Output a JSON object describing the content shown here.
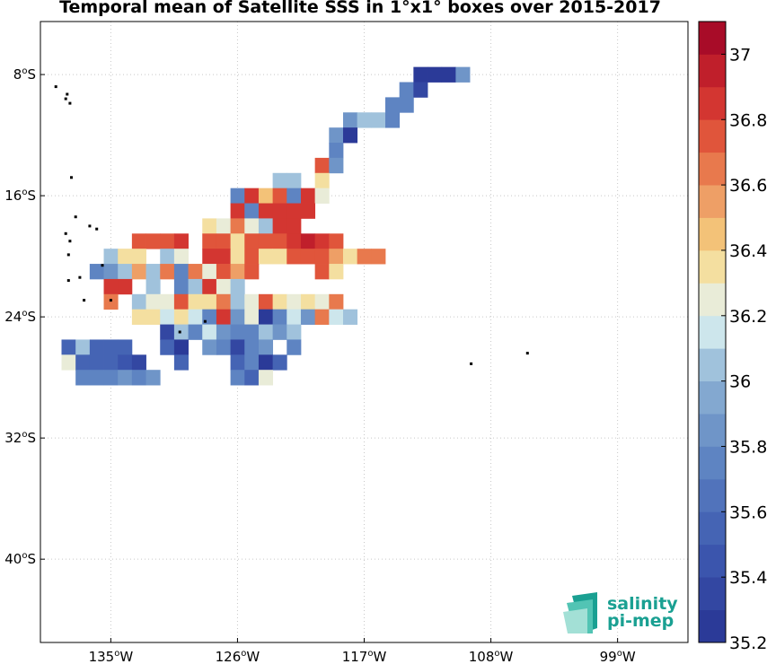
{
  "chart_data": {
    "type": "heatmap",
    "title": "Temporal mean of Satellite SSS in 1°x1° boxes over 2015-2017",
    "x_ticks": [
      {
        "value": -135,
        "label": "135°W"
      },
      {
        "value": -126,
        "label": "126°W"
      },
      {
        "value": -117,
        "label": "117°W"
      },
      {
        "value": -108,
        "label": "108°W"
      },
      {
        "value": -99,
        "label": "99°W"
      }
    ],
    "y_ticks": [
      {
        "value": -8,
        "label": "8°S"
      },
      {
        "value": -16,
        "label": "16°S"
      },
      {
        "value": -24,
        "label": "24°S"
      },
      {
        "value": -32,
        "label": "32°S"
      },
      {
        "value": -40,
        "label": "40°S"
      }
    ],
    "xlim": [
      -140,
      -94
    ],
    "ylim": [
      -45.5,
      -4.5
    ],
    "grid": true,
    "colorbar": {
      "range": [
        35.2,
        37.1
      ],
      "ticks": [
        35.2,
        35.4,
        35.6,
        35.8,
        36,
        36.2,
        36.4,
        36.6,
        36.8,
        37
      ],
      "tick_labels": [
        "35.2",
        "35.4",
        "35.6",
        "35.8",
        "36",
        "36.2",
        "36.4",
        "36.6",
        "36.8",
        "37"
      ],
      "colors": [
        "#2b3a98",
        "#3347a2",
        "#3b55ad",
        "#4564b4",
        "#5173bb",
        "#5e84c2",
        "#6f95c8",
        "#83a8d0",
        "#a0c2dc",
        "#cde6ec",
        "#e9ecd8",
        "#f4dfa0",
        "#f3c278",
        "#ee9f66",
        "#e8794d",
        "#e0553b",
        "#d33631",
        "#c01f2b",
        "#a80c28"
      ]
    },
    "units": "SSS",
    "cells": [
      [
        -113,
        -8,
        35.3
      ],
      [
        -112,
        -8,
        35.25
      ],
      [
        -111,
        -8,
        35.3
      ],
      [
        -110,
        -8,
        35.9
      ],
      [
        -114,
        -9,
        35.7
      ],
      [
        -113,
        -9,
        35.4
      ],
      [
        -115,
        -10,
        35.75
      ],
      [
        -114,
        -10,
        35.7
      ],
      [
        -118,
        -11,
        35.9
      ],
      [
        -117,
        -11,
        36.05
      ],
      [
        -116,
        -11,
        36.1
      ],
      [
        -115,
        -11,
        35.75
      ],
      [
        -119,
        -12,
        35.9
      ],
      [
        -118,
        -12,
        35.3
      ],
      [
        -119,
        -13,
        35.75
      ],
      [
        -120,
        -14,
        36.75
      ],
      [
        -119,
        -14,
        35.9
      ],
      [
        -123,
        -15,
        36.1
      ],
      [
        -122,
        -15,
        36.1
      ],
      [
        -120,
        -15,
        36.4
      ],
      [
        -126,
        -16,
        35.7
      ],
      [
        -125,
        -16,
        36.85
      ],
      [
        -124,
        -16,
        36.45
      ],
      [
        -123,
        -16,
        36.75
      ],
      [
        -122,
        -16,
        35.7
      ],
      [
        -121,
        -16,
        36.9
      ],
      [
        -120,
        -16,
        36.3
      ],
      [
        -126,
        -17,
        36.85
      ],
      [
        -125,
        -17,
        35.7
      ],
      [
        -124,
        -17,
        36.9
      ],
      [
        -123,
        -17,
        36.85
      ],
      [
        -122,
        -17,
        36.85
      ],
      [
        -121,
        -17,
        36.85
      ],
      [
        -128,
        -18,
        36.35
      ],
      [
        -127,
        -18,
        36.2
      ],
      [
        -126,
        -18,
        36.65
      ],
      [
        -125,
        -18,
        36.3
      ],
      [
        -124,
        -18,
        36.1
      ],
      [
        -123,
        -18,
        36.85
      ],
      [
        -122,
        -18,
        36.85
      ],
      [
        -133,
        -19,
        36.8
      ],
      [
        -132,
        -19,
        36.7
      ],
      [
        -131,
        -19,
        36.8
      ],
      [
        -130,
        -19,
        36.9
      ],
      [
        -128,
        -19,
        36.7
      ],
      [
        -127,
        -19,
        36.8
      ],
      [
        -126,
        -19,
        36.4
      ],
      [
        -125,
        -19,
        36.8
      ],
      [
        -124,
        -19,
        36.75
      ],
      [
        -123,
        -19,
        36.8
      ],
      [
        -122,
        -19,
        36.85
      ],
      [
        -121,
        -19,
        37.0
      ],
      [
        -120,
        -19,
        36.9
      ],
      [
        -119,
        -19,
        36.75
      ],
      [
        -135,
        -20,
        36.1
      ],
      [
        -134,
        -20,
        36.4
      ],
      [
        -133,
        -20,
        36.4
      ],
      [
        -131,
        -20,
        36.1
      ],
      [
        -130,
        -20,
        36.2
      ],
      [
        -128,
        -20,
        36.85
      ],
      [
        -127,
        -20,
        36.85
      ],
      [
        -126,
        -20,
        36.4
      ],
      [
        -125,
        -20,
        36.8
      ],
      [
        -124,
        -20,
        36.4
      ],
      [
        -123,
        -20,
        36.4
      ],
      [
        -122,
        -20,
        36.8
      ],
      [
        -121,
        -20,
        36.8
      ],
      [
        -120,
        -20,
        36.75
      ],
      [
        -119,
        -20,
        36.6
      ],
      [
        -118,
        -20,
        36.4
      ],
      [
        -117,
        -20,
        36.65
      ],
      [
        -116,
        -20,
        36.65
      ],
      [
        -136,
        -21,
        35.75
      ],
      [
        -135,
        -21,
        35.9
      ],
      [
        -134,
        -21,
        36.05
      ],
      [
        -133,
        -21,
        36.6
      ],
      [
        -132,
        -21,
        36.05
      ],
      [
        -131,
        -21,
        36.65
      ],
      [
        -130,
        -21,
        35.7
      ],
      [
        -129,
        -21,
        36.65
      ],
      [
        -128,
        -21,
        36.2
      ],
      [
        -127,
        -21,
        36.8
      ],
      [
        -126,
        -21,
        36.6
      ],
      [
        -125,
        -21,
        36.8
      ],
      [
        -120,
        -21,
        36.7
      ],
      [
        -119,
        -21,
        36.4
      ],
      [
        -135,
        -22,
        36.9
      ],
      [
        -134,
        -22,
        36.9
      ],
      [
        -132,
        -22,
        36.05
      ],
      [
        -130,
        -22,
        35.8
      ],
      [
        -129,
        -22,
        36.05
      ],
      [
        -128,
        -22,
        36.85
      ],
      [
        -127,
        -22,
        36.3
      ],
      [
        -126,
        -22,
        36.1
      ],
      [
        -135,
        -23,
        36.65
      ],
      [
        -133,
        -23,
        36.1
      ],
      [
        -132,
        -23,
        36.2
      ],
      [
        -131,
        -23,
        36.2
      ],
      [
        -130,
        -23,
        36.7
      ],
      [
        -129,
        -23,
        36.4
      ],
      [
        -128,
        -23,
        36.4
      ],
      [
        -127,
        -23,
        36.65
      ],
      [
        -126,
        -23,
        36.1
      ],
      [
        -125,
        -23,
        36.2
      ],
      [
        -124,
        -23,
        36.75
      ],
      [
        -123,
        -23,
        36.4
      ],
      [
        -122,
        -23,
        36.2
      ],
      [
        -121,
        -23,
        36.4
      ],
      [
        -120,
        -23,
        36.2
      ],
      [
        -119,
        -23,
        36.65
      ],
      [
        -133,
        -24,
        36.35
      ],
      [
        -132,
        -24,
        36.4
      ],
      [
        -131,
        -24,
        36.15
      ],
      [
        -130,
        -24,
        36.4
      ],
      [
        -129,
        -24,
        36.15
      ],
      [
        -128,
        -24,
        35.8
      ],
      [
        -127,
        -24,
        36.85
      ],
      [
        -126,
        -24,
        35.9
      ],
      [
        -125,
        -24,
        36.3
      ],
      [
        -124,
        -24,
        35.3
      ],
      [
        -123,
        -24,
        35.8
      ],
      [
        -122,
        -24,
        36.15
      ],
      [
        -121,
        -24,
        35.9
      ],
      [
        -120,
        -24,
        36.65
      ],
      [
        -119,
        -24,
        36.15
      ],
      [
        -118,
        -24,
        36.1
      ],
      [
        -131,
        -25,
        35.35
      ],
      [
        -130,
        -25,
        36.05
      ],
      [
        -129,
        -25,
        35.7
      ],
      [
        -128,
        -25,
        36.15
      ],
      [
        -127,
        -25,
        35.9
      ],
      [
        -126,
        -25,
        35.8
      ],
      [
        -125,
        -25,
        35.7
      ],
      [
        -124,
        -25,
        36.1
      ],
      [
        -123,
        -25,
        35.9
      ],
      [
        -122,
        -25,
        36.1
      ],
      [
        -138,
        -26,
        35.6
      ],
      [
        -137,
        -26,
        36.05
      ],
      [
        -136,
        -26,
        35.55
      ],
      [
        -135,
        -26,
        35.55
      ],
      [
        -134,
        -26,
        35.6
      ],
      [
        -131,
        -26,
        35.6
      ],
      [
        -130,
        -26,
        35.3
      ],
      [
        -128,
        -26,
        35.9
      ],
      [
        -127,
        -26,
        35.7
      ],
      [
        -126,
        -26,
        35.35
      ],
      [
        -125,
        -26,
        35.7
      ],
      [
        -124,
        -26,
        35.9
      ],
      [
        -122,
        -26,
        35.8
      ],
      [
        -138,
        -27,
        36.2
      ],
      [
        -137,
        -27,
        35.55
      ],
      [
        -136,
        -27,
        35.6
      ],
      [
        -135,
        -27,
        35.6
      ],
      [
        -134,
        -27,
        35.5
      ],
      [
        -133,
        -27,
        35.4
      ],
      [
        -130,
        -27,
        35.6
      ],
      [
        -126,
        -27,
        35.6
      ],
      [
        -125,
        -27,
        35.8
      ],
      [
        -124,
        -27,
        35.3
      ],
      [
        -123,
        -27,
        35.6
      ],
      [
        -137,
        -28,
        35.7
      ],
      [
        -136,
        -28,
        35.7
      ],
      [
        -135,
        -28,
        35.7
      ],
      [
        -134,
        -28,
        35.9
      ],
      [
        -133,
        -28,
        35.7
      ],
      [
        -132,
        -28,
        35.9
      ],
      [
        -126,
        -28,
        35.7
      ],
      [
        -125,
        -28,
        35.55
      ],
      [
        -124,
        -28,
        36.3
      ]
    ],
    "islands": [
      [
        -138.9,
        -8.8
      ],
      [
        -138.2,
        -9.6
      ],
      [
        -137.9,
        -9.9
      ],
      [
        -138.1,
        -9.3
      ],
      [
        -137.8,
        -14.8
      ],
      [
        -137.5,
        -17.4
      ],
      [
        -136.5,
        -18.0
      ],
      [
        -136.0,
        -18.2
      ],
      [
        -138.2,
        -18.5
      ],
      [
        -137.9,
        -19.0
      ],
      [
        -138.0,
        -19.9
      ],
      [
        -135.6,
        -20.6
      ],
      [
        -137.2,
        -21.4
      ],
      [
        -138.0,
        -21.6
      ],
      [
        -136.9,
        -22.9
      ],
      [
        -135.0,
        -22.9
      ],
      [
        -130.1,
        -25.0
      ],
      [
        -128.3,
        -24.3
      ],
      [
        -109.4,
        -27.1
      ],
      [
        -105.4,
        -26.4
      ]
    ],
    "logo": {
      "line1": "salinity",
      "line2": "pi-mep"
    }
  }
}
